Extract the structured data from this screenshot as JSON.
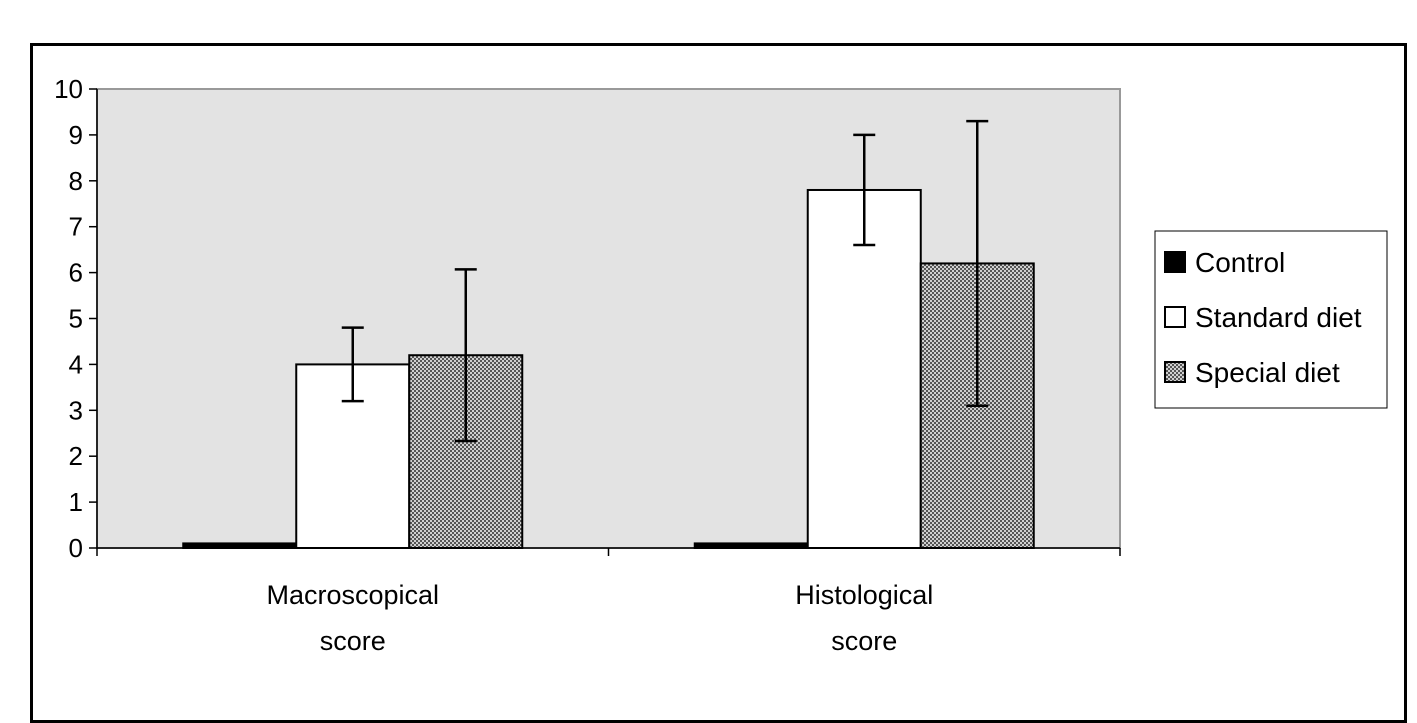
{
  "chart_data": {
    "type": "bar",
    "categories": [
      "Macroscopical score",
      "Histological score"
    ],
    "category_label_lines": [
      [
        "Macroscopical",
        "score"
      ],
      [
        "Histological",
        "score"
      ]
    ],
    "series": [
      {
        "name": "Control",
        "values": [
          0.1,
          0.1
        ],
        "errors": [
          0,
          0
        ]
      },
      {
        "name": "Standard diet",
        "values": [
          4.0,
          7.8
        ],
        "errors": [
          0.8,
          1.2
        ]
      },
      {
        "name": "Special diet",
        "values": [
          4.2,
          6.2
        ],
        "errors": [
          1.87,
          3.1
        ]
      }
    ],
    "yticks": [
      0,
      1,
      2,
      3,
      4,
      5,
      6,
      7,
      8,
      9,
      10
    ],
    "ylim": [
      0,
      10
    ],
    "title": "",
    "xlabel": "",
    "ylabel": "",
    "grid": false,
    "legend_position": "right",
    "colors": {
      "plot_background": "#e3e3e3",
      "control_fill": "#000000",
      "standard_fill": "#ffffff",
      "special_fill": "#9a9a9a"
    }
  }
}
